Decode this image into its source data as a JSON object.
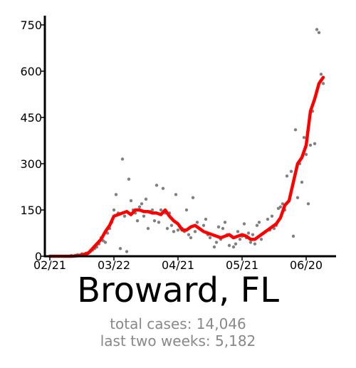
{
  "chart_data": {
    "type": "line",
    "title": "Broward, FL",
    "ylim": [
      0,
      780
    ],
    "yticks": [
      0,
      150,
      300,
      450,
      600,
      750
    ],
    "x_start": "02/21",
    "x_end": "06/26",
    "xticks": [
      {
        "label": "02/21",
        "day": 0
      },
      {
        "label": "03/22",
        "day": 30
      },
      {
        "label": "04/21",
        "day": 60
      },
      {
        "label": "05/21",
        "day": 90
      },
      {
        "label": "06/20",
        "day": 120
      }
    ],
    "series": [
      {
        "kind": "daily_points",
        "color": "#808080",
        "x": [
          10,
          12,
          13,
          14,
          15,
          16,
          17,
          18,
          19,
          20,
          21,
          22,
          23,
          24,
          25,
          26,
          27,
          28,
          29,
          30,
          31,
          32,
          33,
          34,
          35,
          36,
          37,
          38,
          39,
          40,
          41,
          42,
          43,
          44,
          45,
          46,
          47,
          48,
          49,
          50,
          51,
          52,
          53,
          54,
          55,
          56,
          57,
          58,
          59,
          60,
          61,
          62,
          63,
          64,
          65,
          66,
          67,
          68,
          69,
          70,
          71,
          72,
          73,
          74,
          75,
          76,
          77,
          78,
          79,
          80,
          81,
          82,
          83,
          84,
          85,
          86,
          87,
          88,
          89,
          90,
          91,
          92,
          93,
          94,
          95,
          96,
          97,
          98,
          99,
          100,
          101,
          102,
          103,
          104,
          105,
          106,
          107,
          108,
          109,
          110,
          111,
          112,
          113,
          114,
          115,
          116,
          117,
          118,
          119,
          120,
          121,
          122,
          123,
          124,
          125,
          126,
          127,
          128
        ],
        "y": [
          2,
          3,
          5,
          4,
          8,
          6,
          10,
          12,
          15,
          20,
          25,
          30,
          40,
          60,
          50,
          45,
          75,
          90,
          110,
          150,
          200,
          140,
          25,
          315,
          130,
          15,
          250,
          180,
          150,
          140,
          115,
          160,
          170,
          130,
          185,
          90,
          145,
          150,
          115,
          230,
          110,
          150,
          220,
          140,
          90,
          140,
          100,
          80,
          200,
          85,
          95,
          90,
          80,
          150,
          70,
          60,
          190,
          80,
          110,
          90,
          85,
          100,
          120,
          70,
          60,
          70,
          30,
          45,
          95,
          55,
          90,
          110,
          70,
          35,
          65,
          30,
          40,
          80,
          55,
          65,
          105,
          60,
          75,
          45,
          70,
          40,
          100,
          110,
          55,
          75,
          80,
          120,
          85,
          130,
          90,
          100,
          155,
          160,
          170,
          150,
          260,
          180,
          275,
          65,
          410,
          190,
          300,
          240,
          385,
          330,
          170,
          360,
          470,
          365,
          735,
          725,
          590,
          560
        ]
      },
      {
        "kind": "rolling_average",
        "color": "#ff0000",
        "x": [
          0,
          10,
          14,
          18,
          20,
          22,
          24,
          26,
          28,
          30,
          32,
          34,
          36,
          38,
          40,
          42,
          44,
          46,
          48,
          50,
          52,
          54,
          56,
          58,
          60,
          62,
          64,
          66,
          68,
          70,
          72,
          74,
          76,
          78,
          80,
          82,
          84,
          86,
          88,
          90,
          92,
          94,
          96,
          98,
          100,
          102,
          104,
          106,
          108,
          110,
          112,
          114,
          116,
          118,
          120,
          122,
          124,
          126,
          128
        ],
        "y": [
          0,
          0,
          2,
          10,
          25,
          40,
          55,
          80,
          100,
          130,
          135,
          140,
          145,
          135,
          150,
          150,
          145,
          145,
          140,
          140,
          135,
          150,
          130,
          115,
          105,
          85,
          85,
          95,
          100,
          90,
          80,
          75,
          70,
          65,
          60,
          65,
          70,
          60,
          65,
          70,
          65,
          55,
          55,
          65,
          75,
          85,
          95,
          105,
          125,
          165,
          180,
          240,
          300,
          320,
          360,
          470,
          510,
          560,
          580
        ]
      }
    ],
    "stats": {
      "total_cases": "total cases: 14,046",
      "last_two_weeks": "last two weeks: 5,182"
    }
  }
}
